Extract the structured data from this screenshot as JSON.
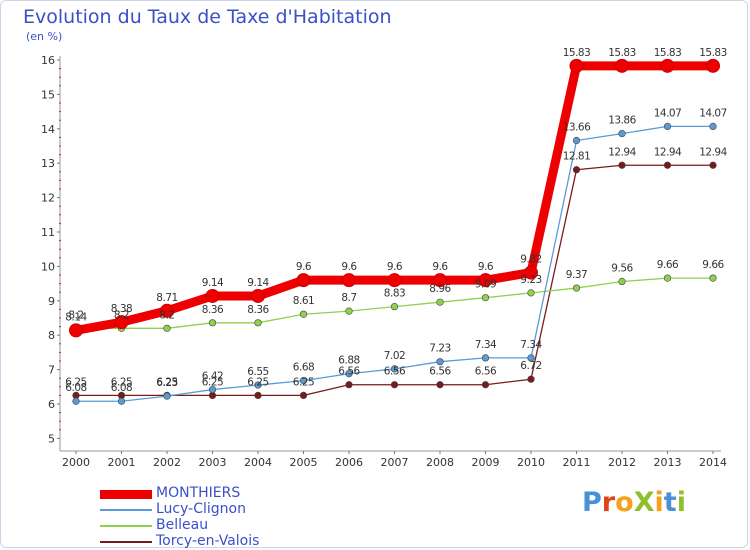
{
  "title": "Evolution du Taux de Taxe d'Habitation",
  "subtitle": "(en %)",
  "brand": {
    "text": "ProXiti",
    "letters": [
      "P",
      "r",
      "o",
      "X",
      "i",
      "t",
      "i"
    ],
    "colors": [
      "#4a90d9",
      "#e2421b",
      "#f3a21a",
      "#8fc02c",
      "#f3a21a",
      "#4a90d9",
      "#8fc02c"
    ]
  },
  "chart_data": {
    "type": "line",
    "title": "Evolution du Taux de Taxe d'Habitation",
    "ylabel": "(en %)",
    "xlabel": "",
    "x": [
      "2000",
      "2001",
      "2002",
      "2003",
      "2004",
      "2005",
      "2006",
      "2007",
      "2008",
      "2009",
      "2010",
      "2011",
      "2012",
      "2013",
      "2014"
    ],
    "ylim": [
      5,
      16
    ],
    "yticks": [
      "5",
      "6",
      "7",
      "8",
      "9",
      "10",
      "11",
      "12",
      "13",
      "14",
      "15",
      "16"
    ],
    "grid": false,
    "legend_position": "bottom-left",
    "series": [
      {
        "name": "MONTHIERS",
        "color": "#ee0000",
        "values": [
          8.14,
          8.38,
          8.71,
          9.14,
          9.14,
          9.6,
          9.6,
          9.6,
          9.6,
          9.6,
          9.82,
          15.83,
          15.83,
          15.83,
          15.83
        ],
        "labels": [
          "8.14",
          "8.38",
          "8.71",
          "9.14",
          "9.14",
          "9.6",
          "9.6",
          "9.6",
          "9.6",
          "9.6",
          "9.82",
          "15.83",
          "15.83",
          "15.83",
          "15.83"
        ]
      },
      {
        "name": "Lucy-Clignon",
        "color": "#5b9bd5",
        "values": [
          6.08,
          6.08,
          6.23,
          6.42,
          6.55,
          6.68,
          6.88,
          7.02,
          7.23,
          7.34,
          7.34,
          13.66,
          13.86,
          14.07,
          14.07
        ],
        "labels": [
          "6.08",
          "6.08",
          "6.23",
          "6.42",
          "6.55",
          "6.68",
          "6.88",
          "7.02",
          "7.23",
          "7.34",
          "7.34",
          "13.66",
          "13.86",
          "14.07",
          "14.07"
        ]
      },
      {
        "name": "Belleau",
        "color": "#8fd14f",
        "values": [
          8.2,
          8.2,
          8.2,
          8.36,
          8.36,
          8.61,
          8.7,
          8.83,
          8.96,
          9.09,
          9.23,
          9.37,
          9.56,
          9.66,
          9.66
        ],
        "labels": [
          "8.2",
          "8.2",
          "8.2",
          "8.36",
          "8.36",
          "8.61",
          "8.7",
          "8.83",
          "8.96",
          "9.09",
          "9.23",
          "9.37",
          "9.56",
          "9.66",
          "9.66"
        ]
      },
      {
        "name": "Torcy-en-Valois",
        "color": "#7b1a1a",
        "values": [
          6.25,
          6.25,
          6.25,
          6.25,
          6.25,
          6.25,
          6.56,
          6.56,
          6.56,
          6.56,
          6.72,
          12.81,
          12.94,
          12.94,
          12.94
        ],
        "labels": [
          "6.25",
          "6.25",
          "6.25",
          "6.25",
          "6.25",
          "6.25",
          "6.56",
          "6.56",
          "6.56",
          "6.56",
          "6.72",
          "12.81",
          "12.94",
          "12.94",
          "12.94"
        ]
      }
    ]
  }
}
